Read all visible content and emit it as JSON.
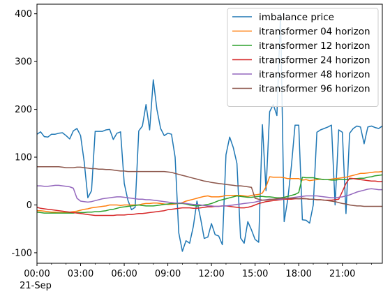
{
  "chart_data": {
    "type": "line",
    "title": "",
    "xlabel": "",
    "ylabel": "",
    "x_date_label": "21-Sep",
    "x_tick_labels": [
      "00:00",
      "03:00",
      "06:00",
      "09:00",
      "12:00",
      "15:00",
      "18:00",
      "21:00"
    ],
    "x_tick_hours": [
      0,
      3,
      6,
      9,
      12,
      15,
      18,
      21
    ],
    "xlim_hours": [
      0,
      23.75
    ],
    "y_tick_values": [
      -100,
      0,
      100,
      200,
      300,
      400
    ],
    "y_tick_labels": [
      "-100",
      "0",
      "100",
      "200",
      "300",
      "400"
    ],
    "ylim": [
      -122,
      420
    ],
    "grid": false,
    "legend_position": "top-right",
    "x_hours": [
      0,
      0.25,
      0.5,
      0.75,
      1,
      1.25,
      1.5,
      1.75,
      2,
      2.25,
      2.5,
      2.75,
      3,
      3.25,
      3.5,
      3.75,
      4,
      4.25,
      4.5,
      4.75,
      5,
      5.25,
      5.5,
      5.75,
      6,
      6.25,
      6.5,
      6.75,
      7,
      7.25,
      7.5,
      7.75,
      8,
      8.25,
      8.5,
      8.75,
      9,
      9.25,
      9.5,
      9.75,
      10,
      10.25,
      10.5,
      10.75,
      11,
      11.25,
      11.5,
      11.75,
      12,
      12.25,
      12.5,
      12.75,
      13,
      13.25,
      13.5,
      13.75,
      14,
      14.25,
      14.5,
      14.75,
      15,
      15.25,
      15.5,
      15.75,
      16,
      16.25,
      16.5,
      16.75,
      17,
      17.25,
      17.5,
      17.75,
      18,
      18.25,
      18.5,
      18.75,
      19,
      19.25,
      19.5,
      19.75,
      20,
      20.25,
      20.5,
      20.75,
      21,
      21.25,
      21.5,
      21.75,
      22,
      22.25,
      22.5,
      22.75,
      23,
      23.25,
      23.5,
      23.75
    ],
    "series": [
      {
        "name": "imbalance price",
        "color": "#1f77b4",
        "values": [
          148,
          153,
          143,
          142,
          148,
          148,
          150,
          151,
          145,
          138,
          155,
          160,
          145,
          90,
          15,
          30,
          154,
          154,
          154,
          157,
          158,
          137,
          150,
          153,
          45,
          10,
          -10,
          -5,
          155,
          165,
          210,
          157,
          262,
          200,
          160,
          145,
          150,
          148,
          100,
          -58,
          -97,
          -75,
          -80,
          -45,
          8,
          -28,
          -70,
          -67,
          -39,
          -62,
          -65,
          -83,
          105,
          142,
          120,
          87,
          -69,
          -80,
          -35,
          -52,
          -72,
          -78,
          168,
          30,
          195,
          210,
          187,
          400,
          -35,
          12,
          82,
          167,
          167,
          -31,
          -32,
          -38,
          0,
          152,
          157,
          160,
          163,
          167,
          0,
          157,
          152,
          -18,
          150,
          160,
          165,
          163,
          128,
          163,
          165,
          162,
          160,
          165
        ]
      },
      {
        "name": "itransformer 04 horizon",
        "color": "#ff7f0e",
        "values": [
          -12,
          -12,
          -13,
          -14,
          -15,
          -15,
          -16,
          -16,
          -16,
          -15,
          -14,
          -13,
          -11,
          -9,
          -8,
          -6,
          -5,
          -4,
          -3,
          -2,
          0,
          0,
          0,
          -1,
          0,
          0,
          0,
          0,
          0,
          2,
          3,
          3,
          4,
          4,
          3,
          2,
          1,
          1,
          2,
          3,
          5,
          8,
          10,
          12,
          14,
          16,
          18,
          19,
          17,
          17,
          17,
          18,
          20,
          20,
          20,
          20,
          20,
          19,
          18,
          20,
          21,
          22,
          25,
          38,
          59,
          58,
          58,
          58,
          57,
          55,
          55,
          55,
          55,
          52,
          53,
          51,
          52,
          53,
          54,
          53,
          53,
          54,
          55,
          56,
          57,
          58,
          60,
          62,
          64,
          66,
          66,
          67,
          68,
          69,
          69,
          70
        ]
      },
      {
        "name": "itransformer 12 horizon",
        "color": "#2ca02c",
        "values": [
          -15,
          -16,
          -17,
          -17,
          -17,
          -17,
          -17,
          -17,
          -17,
          -17,
          -17,
          -16,
          -16,
          -16,
          -15,
          -15,
          -14,
          -14,
          -13,
          -12,
          -10,
          -9,
          -7,
          -5,
          -4,
          -3,
          -2,
          -1,
          0,
          -1,
          -2,
          -2,
          -2,
          -1,
          0,
          1,
          2,
          3,
          3,
          3,
          3,
          2,
          0,
          -1,
          -2,
          -1,
          0,
          1,
          3,
          6,
          9,
          11,
          13,
          15,
          17,
          19,
          18,
          17,
          16,
          16,
          17,
          18,
          18,
          17,
          17,
          16,
          15,
          15,
          16,
          18,
          20,
          22,
          26,
          58,
          57,
          57,
          57,
          55,
          54,
          53,
          53,
          52,
          52,
          53,
          53,
          53,
          54,
          55,
          55,
          56,
          56,
          58,
          59,
          61,
          62,
          63
        ]
      },
      {
        "name": "itransformer 24 horizon",
        "color": "#d62728",
        "values": [
          -5,
          -7,
          -8,
          -9,
          -10,
          -11,
          -12,
          -13,
          -14,
          -15,
          -16,
          -17,
          -18,
          -19,
          -20,
          -21,
          -22,
          -22,
          -22,
          -22,
          -22,
          -22,
          -21,
          -21,
          -21,
          -20,
          -20,
          -19,
          -18,
          -18,
          -17,
          -16,
          -15,
          -14,
          -13,
          -12,
          -10,
          -9,
          -8,
          -7,
          -6,
          -6,
          -6,
          -7,
          -7,
          -6,
          -5,
          -4,
          -4,
          -3,
          -3,
          -2,
          -2,
          -3,
          -4,
          -5,
          -6,
          -6,
          -5,
          -3,
          0,
          3,
          5,
          7,
          8,
          9,
          10,
          11,
          12,
          12,
          12,
          13,
          13,
          14,
          13,
          12,
          12,
          11,
          11,
          10,
          10,
          10,
          11,
          12,
          28,
          45,
          56,
          55,
          54,
          53,
          52,
          51,
          50,
          50,
          49,
          49
        ]
      },
      {
        "name": "itransformer 48 horizon",
        "color": "#9467bd",
        "values": [
          40,
          40,
          39,
          39,
          40,
          41,
          41,
          40,
          39,
          38,
          35,
          14,
          8,
          7,
          6,
          7,
          9,
          11,
          13,
          14,
          15,
          16,
          17,
          17,
          16,
          15,
          14,
          13,
          12,
          12,
          11,
          11,
          10,
          9,
          8,
          7,
          6,
          5,
          4,
          4,
          4,
          3,
          2,
          1,
          1,
          0,
          -1,
          -2,
          -2,
          -3,
          -3,
          -2,
          -2,
          -1,
          0,
          1,
          2,
          3,
          4,
          5,
          6,
          8,
          10,
          11,
          12,
          12,
          12,
          12,
          13,
          14,
          15,
          16,
          17,
          18,
          19,
          19,
          19,
          19,
          18,
          17,
          16,
          15,
          15,
          16,
          17,
          19,
          21,
          24,
          27,
          29,
          31,
          33,
          34,
          33,
          32,
          32
        ]
      },
      {
        "name": "itransformer 96 horizon",
        "color": "#8c564b",
        "values": [
          80,
          80,
          80,
          80,
          80,
          80,
          80,
          79,
          78,
          78,
          78,
          79,
          79,
          78,
          77,
          76,
          76,
          75,
          75,
          74,
          74,
          73,
          72,
          71,
          71,
          70,
          70,
          70,
          70,
          70,
          70,
          70,
          70,
          70,
          70,
          70,
          69,
          68,
          66,
          64,
          62,
          60,
          58,
          56,
          54,
          52,
          50,
          49,
          47,
          46,
          45,
          44,
          43,
          42,
          41,
          40,
          40,
          39,
          38,
          37,
          14,
          12,
          10,
          10,
          11,
          12,
          13,
          14,
          14,
          14,
          14,
          14,
          13,
          13,
          13,
          12,
          12,
          11,
          11,
          10,
          9,
          8,
          7,
          5,
          3,
          2,
          0,
          -1,
          -2,
          -2,
          -3,
          -3,
          -3,
          -3,
          -3,
          -3
        ]
      }
    ]
  }
}
